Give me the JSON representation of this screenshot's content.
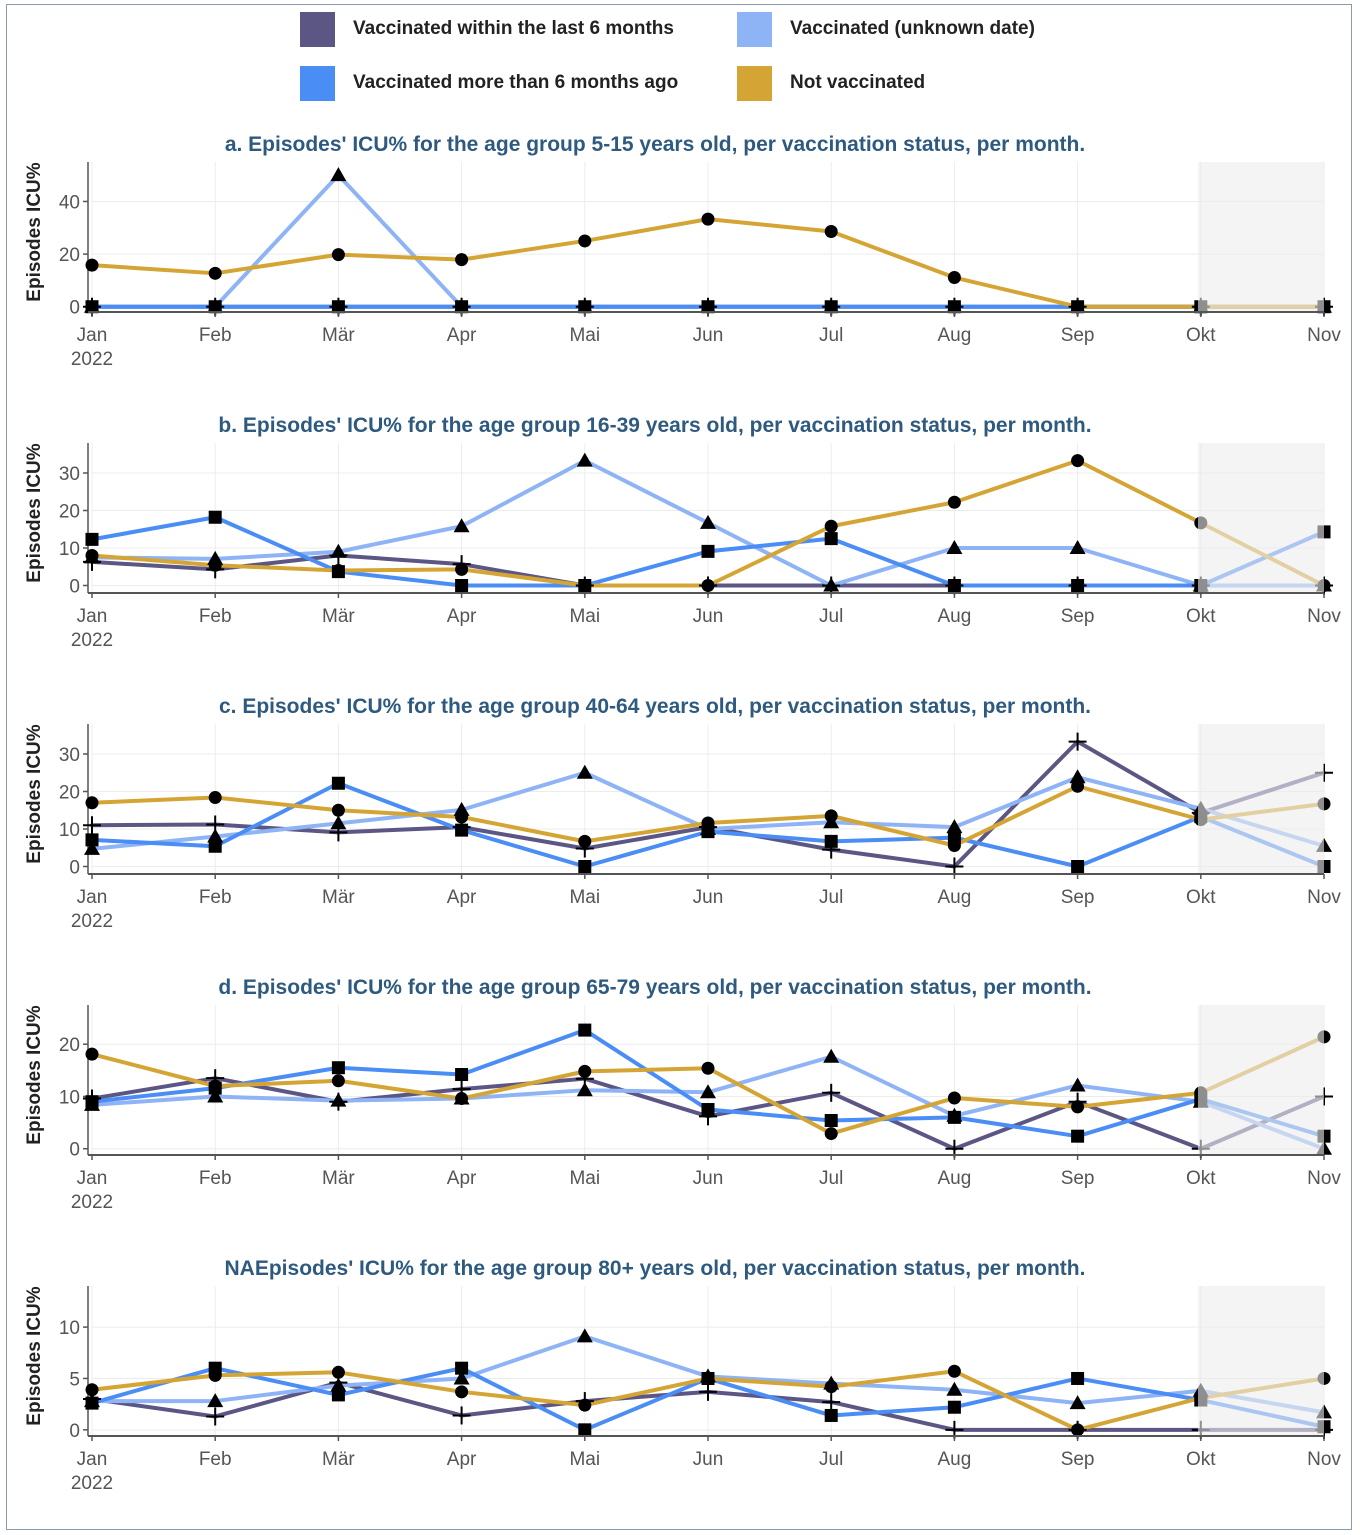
{
  "colors": {
    "vacc_recent": "#5b5684",
    "vacc_unknown": "#8eb4f6",
    "vacc_old": "#4a8df5",
    "not_vacc": "#d4a534",
    "title": "#2f5a80",
    "axis_text": "#555555",
    "grid": "#ececec",
    "shade": "#ededed"
  },
  "legend": [
    {
      "key": "recent",
      "label": "Vaccinated within the last 6 months",
      "color": "#5b5684"
    },
    {
      "key": "unknown",
      "label": "Vaccinated (unknown date)",
      "color": "#8eb4f6"
    },
    {
      "key": "old",
      "label": "Vaccinated more than 6 months ago",
      "color": "#4a8df5"
    },
    {
      "key": "notvacc",
      "label": "Not vaccinated",
      "color": "#d4a534"
    }
  ],
  "chart_data": [
    {
      "type": "line",
      "title": "a. Episodes' ICU% for the age group 5-15 years old, per vaccination status, per month.",
      "ylabel": "Episodes ICU%",
      "x": [
        "Jan",
        "Feb",
        "Mär",
        "Apr",
        "Mai",
        "Jun",
        "Jul",
        "Aug",
        "Sep",
        "Okt",
        "Nov"
      ],
      "x_sub": "2022",
      "ylim": [
        -2,
        55
      ],
      "yticks": [
        0,
        20,
        40
      ],
      "shaded_from": "Okt",
      "series": [
        {
          "name": "Vaccinated within the last 6 months",
          "marker": "plus",
          "values": [
            0,
            0,
            0,
            0,
            0,
            0,
            0,
            0,
            0,
            0,
            0
          ]
        },
        {
          "name": "Vaccinated (unknown date)",
          "marker": "triangle",
          "values": [
            0,
            0,
            50,
            0,
            0,
            0,
            0,
            0,
            0,
            0,
            0
          ]
        },
        {
          "name": "Vaccinated more than 6 months ago",
          "marker": "square",
          "values": [
            0,
            0,
            0,
            0,
            0,
            0,
            0,
            0,
            0,
            0,
            0
          ]
        },
        {
          "name": "Not vaccinated",
          "marker": "circle",
          "values": [
            15.8,
            12.7,
            19.8,
            17.9,
            25,
            33.3,
            28.6,
            11.1,
            0,
            0,
            0
          ]
        }
      ]
    },
    {
      "type": "line",
      "title": "b. Episodes' ICU% for the age group 16-39 years old, per vaccination status, per month.",
      "ylabel": "Episodes ICU%",
      "x": [
        "Jan",
        "Feb",
        "Mär",
        "Apr",
        "Mai",
        "Jun",
        "Jul",
        "Aug",
        "Sep",
        "Okt",
        "Nov"
      ],
      "x_sub": "2022",
      "ylim": [
        -2,
        38
      ],
      "yticks": [
        0,
        10,
        20,
        30,
        40
      ],
      "shaded_from": "Okt",
      "series": [
        {
          "name": "Vaccinated within the last 6 months",
          "marker": "plus",
          "values": [
            6.3,
            4.3,
            8,
            5.7,
            0,
            0,
            0,
            0,
            0,
            0,
            0
          ]
        },
        {
          "name": "Vaccinated (unknown date)",
          "marker": "triangle",
          "values": [
            7.5,
            7.1,
            9,
            15.8,
            33.3,
            16.7,
            0,
            10,
            10,
            0,
            0
          ]
        },
        {
          "name": "Vaccinated more than 6 months ago",
          "marker": "square",
          "values": [
            12.3,
            18.2,
            3.7,
            0,
            0,
            9.1,
            12.5,
            0,
            0,
            0,
            14.3
          ]
        },
        {
          "name": "Not vaccinated",
          "marker": "circle",
          "values": [
            8,
            5.4,
            4,
            4.3,
            0,
            0,
            15.8,
            22.2,
            33.3,
            16.7,
            0
          ]
        }
      ]
    },
    {
      "type": "line",
      "title": "c. Episodes' ICU% for the age group 40-64 years old, per vaccination status, per month.",
      "ylabel": "Episodes ICU%",
      "x": [
        "Jan",
        "Feb",
        "Mär",
        "Apr",
        "Mai",
        "Jun",
        "Jul",
        "Aug",
        "Sep",
        "Okt",
        "Nov"
      ],
      "x_sub": "2022",
      "ylim": [
        -2,
        38
      ],
      "yticks": [
        0,
        10,
        20,
        30,
        40
      ],
      "shaded_from": "Okt",
      "series": [
        {
          "name": "Vaccinated within the last 6 months",
          "marker": "plus",
          "values": [
            11,
            11.2,
            9.1,
            10.5,
            4.8,
            10.5,
            4.5,
            0,
            33.3,
            14.3,
            25
          ]
        },
        {
          "name": "Vaccinated (unknown date)",
          "marker": "triangle",
          "values": [
            4.7,
            8,
            11.5,
            15.1,
            25,
            10,
            11.8,
            10.5,
            23.8,
            15.4,
            5.5
          ]
        },
        {
          "name": "Vaccinated more than 6 months ago",
          "marker": "square",
          "values": [
            7.1,
            5.4,
            22.2,
            9.7,
            0,
            9.3,
            6.7,
            7.7,
            0,
            13.3,
            0
          ]
        },
        {
          "name": "Not vaccinated",
          "marker": "circle",
          "values": [
            17,
            18.4,
            15,
            13.2,
            6.7,
            11.6,
            13.5,
            5.6,
            21.4,
            12.5,
            16.7
          ]
        }
      ]
    },
    {
      "type": "line",
      "title": "d. Episodes' ICU% for the age group 65-79 years old, per vaccination status, per month.",
      "ylabel": "Episodes ICU%",
      "x": [
        "Jan",
        "Feb",
        "Mär",
        "Apr",
        "Mai",
        "Jun",
        "Jul",
        "Aug",
        "Sep",
        "Okt",
        "Nov"
      ],
      "x_sub": "2022",
      "ylim": [
        -1.2,
        27.5
      ],
      "yticks": [
        0,
        10,
        20
      ],
      "shaded_from": "Okt",
      "series": [
        {
          "name": "Vaccinated within the last 6 months",
          "marker": "plus",
          "values": [
            9.6,
            13.5,
            9,
            11.4,
            13.4,
            6.2,
            10.7,
            0,
            9,
            0,
            10
          ]
        },
        {
          "name": "Vaccinated (unknown date)",
          "marker": "triangle",
          "values": [
            8.4,
            10,
            9.2,
            9.6,
            11.2,
            10.8,
            17.6,
            6.3,
            12.1,
            9,
            0
          ]
        },
        {
          "name": "Vaccinated more than 6 months ago",
          "marker": "square",
          "values": [
            9,
            11.6,
            15.5,
            14.2,
            22.7,
            7.5,
            5.4,
            6,
            2.4,
            9.5,
            2.4
          ]
        },
        {
          "name": "Not vaccinated",
          "marker": "circle",
          "values": [
            18.1,
            12,
            13,
            9.6,
            14.8,
            15.4,
            2.9,
            9.7,
            8,
            10.7,
            21.4
          ]
        }
      ]
    },
    {
      "type": "line",
      "title": "NAEpisodes' ICU% for the age group 80+ years old, per vaccination status, per month.",
      "ylabel": "Episodes ICU%",
      "x": [
        "Jan",
        "Feb",
        "Mär",
        "Apr",
        "Mai",
        "Jun",
        "Jul",
        "Aug",
        "Sep",
        "Okt",
        "Nov"
      ],
      "x_sub": "2022",
      "ylim": [
        -0.6,
        14
      ],
      "yticks": [
        0,
        5,
        10
      ],
      "shaded_from": "Okt",
      "series": [
        {
          "name": "Vaccinated within the last 6 months",
          "marker": "plus",
          "values": [
            3,
            1.3,
            4.6,
            1.4,
            2.8,
            3.7,
            2.7,
            0,
            0,
            0,
            0
          ]
        },
        {
          "name": "Vaccinated (unknown date)",
          "marker": "triangle",
          "values": [
            2.8,
            2.8,
            4.3,
            5,
            9.1,
            5.2,
            4.5,
            3.9,
            2.6,
            3.8,
            1.7
          ]
        },
        {
          "name": "Vaccinated more than 6 months ago",
          "marker": "square",
          "values": [
            2.6,
            6,
            3.4,
            6,
            0,
            5,
            1.4,
            2.2,
            5,
            2.9,
            0.3
          ]
        },
        {
          "name": "Not vaccinated",
          "marker": "circle",
          "values": [
            3.9,
            5.3,
            5.6,
            3.7,
            2.4,
            5,
            4.2,
            5.7,
            0,
            3.1,
            5
          ]
        }
      ]
    }
  ]
}
